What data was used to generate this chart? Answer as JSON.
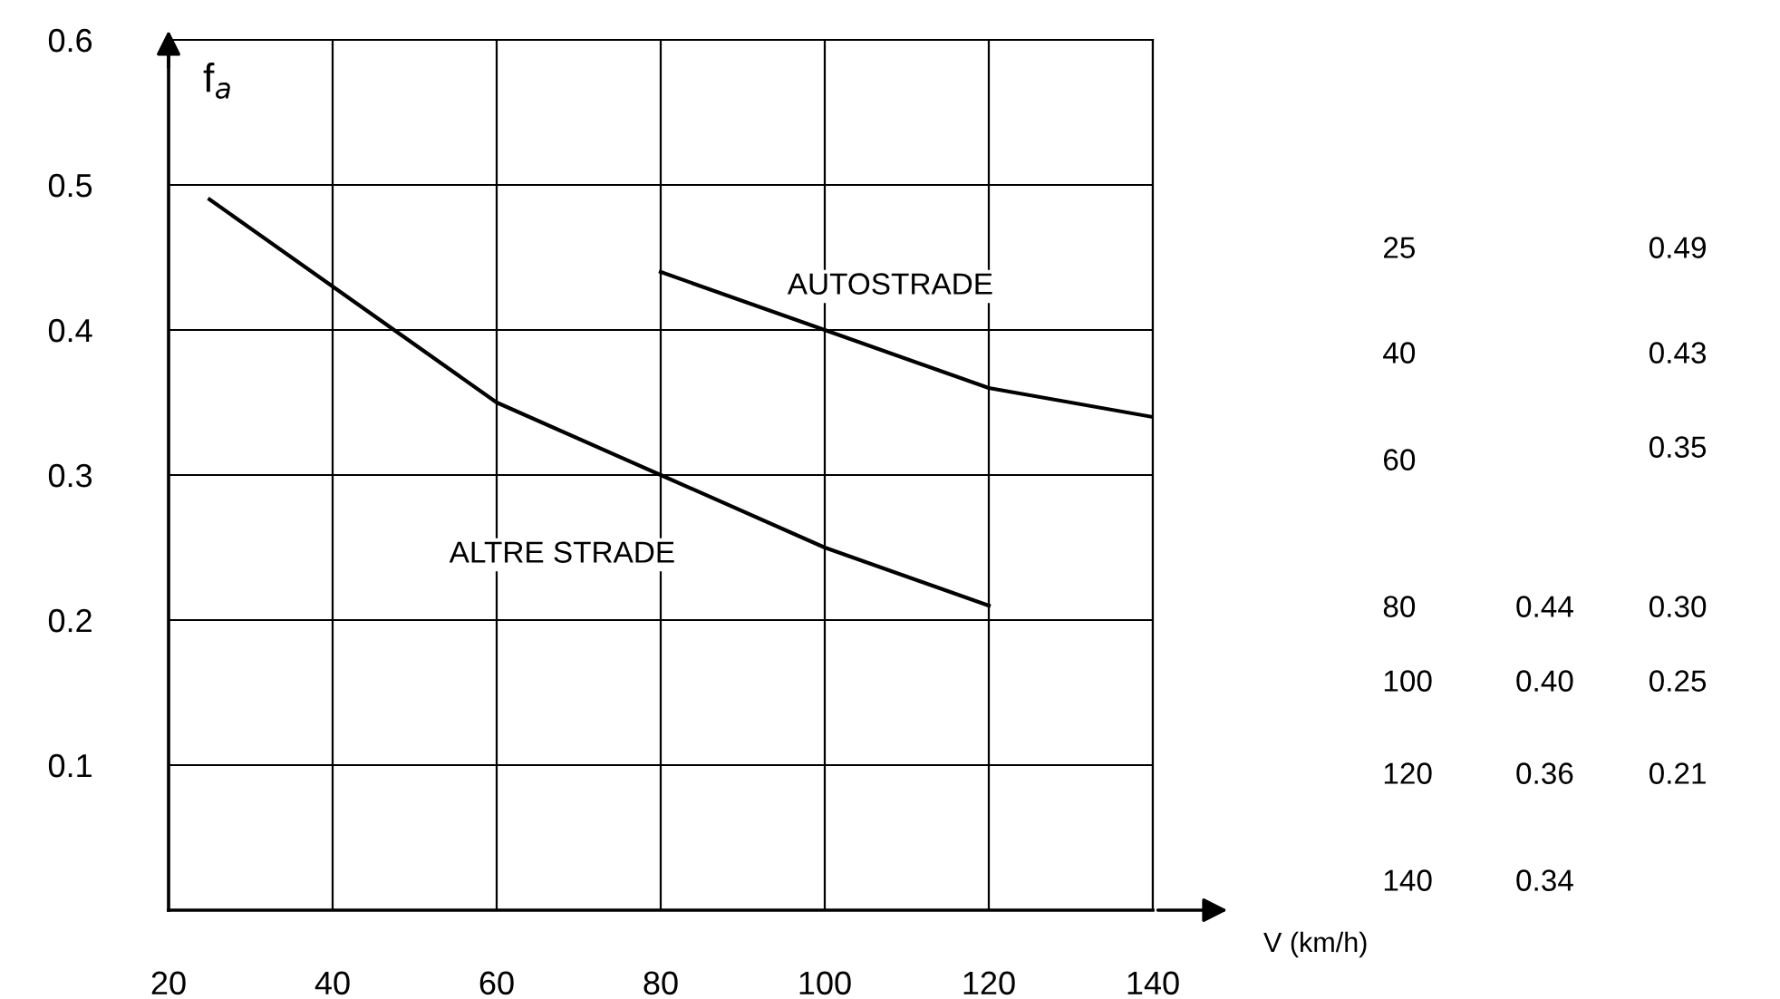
{
  "chart_data": [
    {
      "type": "line",
      "xlabel": "V (km/h)",
      "ylabel": "f$_{a}$",
      "x": [
        25,
        40,
        60,
        80,
        100,
        120,
        140
      ],
      "series": [
        {
          "name": "AUTOSTRADE",
          "color": "#000000",
          "values": [
            null,
            null,
            null,
            0.44,
            0.4,
            0.36,
            0.34
          ]
        },
        {
          "name": "ALTRE STRADE",
          "color": "#000000",
          "values": [
            0.49,
            0.43,
            0.35,
            0.3,
            0.25,
            0.21,
            null
          ]
        }
      ],
      "xlim": [
        20,
        140
      ],
      "ylim": [
        0,
        0.6
      ],
      "xticks": [
        20,
        40,
        60,
        80,
        100,
        120,
        140
      ],
      "yticks": [
        0.1,
        0.2,
        0.3,
        0.4,
        0.5,
        0.6
      ],
      "grid": true,
      "marker": "none",
      "line_style": "solid"
    },
    {
      "type": "other",
      "categories": [
        "25",
        "40",
        "60",
        "80",
        "100",
        "120",
        "140"
      ],
      "series": [
        {
          "values": [
            null,
            null,
            null,
            0.44,
            0.4,
            0.36,
            0.34
          ],
          "value_labels": [
            null,
            null,
            null,
            "0.44",
            "0.40",
            "0.36",
            "0.34"
          ]
        },
        {
          "values": [
            0.49,
            0.43,
            0.35,
            0.3,
            0.25,
            0.21,
            null
          ],
          "value_labels": [
            "0.49",
            "0.43",
            "0.35",
            "0.30",
            "0.25",
            "0.21",
            null
          ]
        }
      ]
    }
  ]
}
